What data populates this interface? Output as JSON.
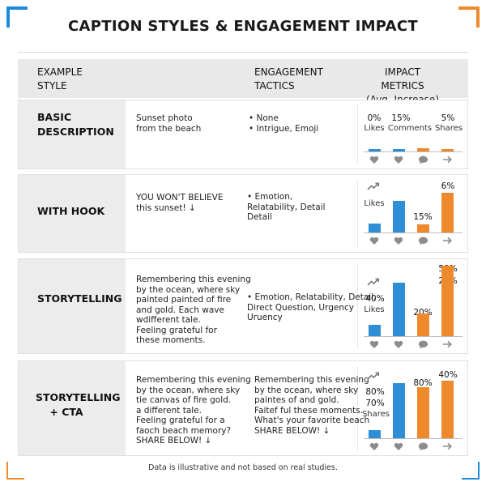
{
  "title": "CAPTION STYLES & ENGAGEMENT IMPACT",
  "header": {
    "col1_line1": "EXAMPLE",
    "col1_line2": "STYLE",
    "col2_line1": "ENGAGEMENT",
    "col2_line2": "TACTICS",
    "col3_line1": "IMPACT METRICS",
    "col3_line2": "(Avg. Increase)"
  },
  "colors": {
    "likes_bar": "#2e8fd6",
    "comments_bar": "#2e8fd6",
    "shares_bar": "#ef8a2c",
    "accent_blue": "#1f8ad8",
    "accent_orange": "#ef8a2c"
  },
  "rows": [
    {
      "label_line1": "BASIC",
      "label_line2": "DESCRIPTION",
      "caption": "Sunset photo\nfrom the beach",
      "tactics": "•  None\n•  Intrigue, Emoji",
      "metrics_text": [
        {
          "text": "0%"
        },
        {
          "text": "15%"
        },
        {
          "text": "5%"
        },
        {
          "text": "Likes"
        },
        {
          "text": "Comments"
        },
        {
          "text": "Shares"
        }
      ],
      "bars": [
        {
          "series": "blue",
          "value": 0.1
        },
        {
          "series": "blue",
          "value": 0.15
        },
        {
          "series": "orange",
          "value": 0.25
        },
        {
          "series": "orange",
          "value": 0.2
        }
      ],
      "icons": [
        "heart-icon",
        "heart-icon",
        "comment-icon",
        "share-icon"
      ]
    },
    {
      "label_line1": "WITH HOOK",
      "label_line2": "",
      "caption": "YOU WON'T BELIEVE\nthis sunset! ↓",
      "tactics": "•  Emotion,\n    Relatability, Detail\n    Detail",
      "metrics_text": [
        {
          "text": "Likes"
        },
        {
          "text": "15%"
        },
        {
          "text": "6%"
        }
      ],
      "bars": [
        {
          "series": "blue",
          "value": 0.22
        },
        {
          "series": "blue",
          "value": 0.75
        },
        {
          "series": "orange",
          "value": 0.2
        },
        {
          "series": "orange",
          "value": 0.95
        }
      ],
      "icons": [
        "trend-icon",
        "heart-icon",
        "heart-icon",
        "comment-icon",
        "share-icon"
      ]
    },
    {
      "label_line1": "STORYTELLING",
      "label_line2": "",
      "caption": "Remembering this evening\nby the ocean, where sky\npainted painted of fire\nand gold. Each wave\nwdifferent tale.\nFeeling grateful for\nthese moments.",
      "tactics": "•  Emotion, Relatability, Detail,\n    Direct Question, Urgency\n    Uruency",
      "metrics_text": [
        {
          "text": "40%"
        },
        {
          "text": "Likes"
        },
        {
          "text": "20%"
        },
        {
          "text": "50%"
        },
        {
          "text": "20%"
        }
      ],
      "bars": [
        {
          "series": "blue",
          "value": 0.15
        },
        {
          "series": "blue",
          "value": 0.72
        },
        {
          "series": "orange",
          "value": 0.3
        },
        {
          "series": "orange",
          "value": 0.95
        }
      ],
      "icons": [
        "trend-icon",
        "heart-icon",
        "heart-icon",
        "comment-icon",
        "share-icon"
      ]
    },
    {
      "label_line1": "STORYTELLING",
      "label_line2": "+ CTA",
      "caption": "Remembering this evening\nby the ocean, where sky\ntie canvas of fire gold.\na different tale.\nFeeling grateful for a\nfaoch beach memory?\nSHARE BELOW! ↓",
      "tactics": "Remembering this evening\nby the ocean, where sky\npaintes of and gold.\nFaitef ful these moments.\nWhat's your favorite beach\nSHARE BELOW! ↓",
      "metrics_text": [
        {
          "text": "80%"
        },
        {
          "text": "70%"
        },
        {
          "text": "Shares"
        },
        {
          "text": "80%"
        },
        {
          "text": "40%"
        }
      ],
      "bars": [
        {
          "series": "blue",
          "value": 0.14
        },
        {
          "series": "blue",
          "value": 0.95
        },
        {
          "series": "orange",
          "value": 0.88
        },
        {
          "series": "orange",
          "value": 0.98
        }
      ],
      "icons": [
        "trend-icon",
        "heart-icon",
        "heart-icon",
        "comment-icon",
        "share-icon"
      ]
    }
  ],
  "footnote": "Data is illustrative and not based on real studies."
}
